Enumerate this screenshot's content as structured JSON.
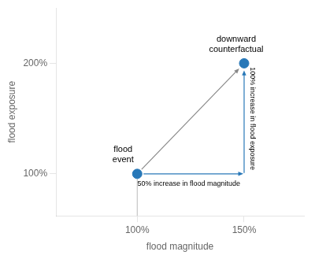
{
  "chart_data": {
    "type": "scatter",
    "x": [
      1.0,
      1.5
    ],
    "values": [
      1.0,
      2.0
    ],
    "color": "#2878b8",
    "xlabel": "flood magnitude",
    "ylabel": "flood exposure",
    "xlim": [
      0.62,
      1.78
    ],
    "ylim": [
      0.62,
      2.5
    ],
    "xticks": [
      {
        "value": 1.0,
        "label": "100%"
      },
      {
        "value": 1.5,
        "label": "150%"
      }
    ],
    "yticks": [
      {
        "value": 1.0,
        "label": "100%"
      },
      {
        "value": 2.0,
        "label": "200%"
      }
    ],
    "grid": false,
    "annotations": [
      "flood\nevent",
      "downward\ncounterfactual",
      "50% increase in flood magnitude",
      "100% increase in flood exposure"
    ]
  }
}
